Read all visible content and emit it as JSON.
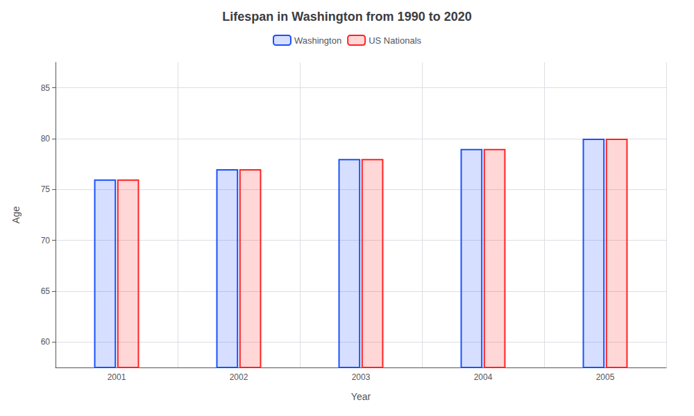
{
  "chart_data": {
    "type": "bar",
    "title": "Lifespan in Washington from 1990 to 2020",
    "x_label": "Year",
    "y_label": "Age",
    "categories": [
      "2001",
      "2002",
      "2003",
      "2004",
      "2005"
    ],
    "series": [
      {
        "name": "Washington",
        "color": "#1a50ff",
        "values": [
          76.0,
          77.0,
          78.0,
          79.0,
          80.0
        ]
      },
      {
        "name": "US Nationals",
        "color": "#ff2222",
        "values": [
          76.0,
          77.0,
          78.0,
          79.0,
          80.0
        ]
      }
    ],
    "ylim": [
      57.5,
      87.5
    ],
    "yticks": [
      60,
      65,
      70,
      75,
      80,
      85
    ],
    "grid": true,
    "legend": "top"
  }
}
